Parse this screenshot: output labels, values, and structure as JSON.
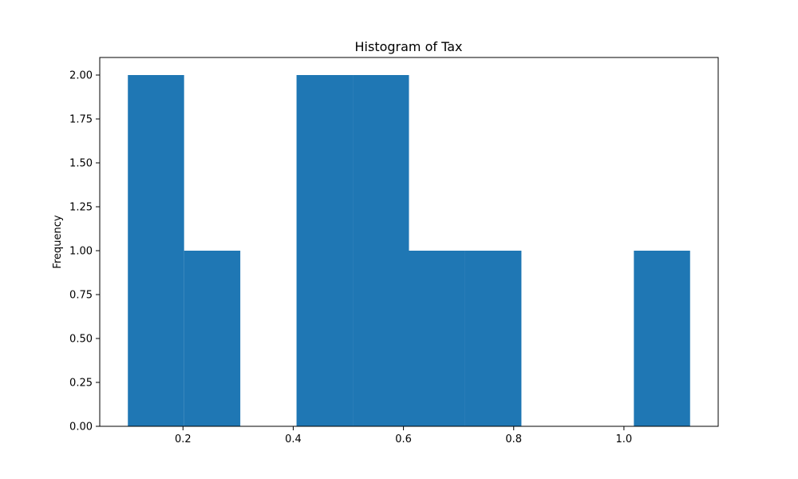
{
  "chart_data": {
    "type": "bar",
    "title": "Histogram of Tax",
    "xlabel": "",
    "ylabel": "Frequency",
    "bins": [
      {
        "x0": 0.1,
        "x1": 0.202,
        "value": 2
      },
      {
        "x0": 0.202,
        "x1": 0.304,
        "value": 1
      },
      {
        "x0": 0.304,
        "x1": 0.406,
        "value": 0
      },
      {
        "x0": 0.406,
        "x1": 0.508,
        "value": 2
      },
      {
        "x0": 0.508,
        "x1": 0.61,
        "value": 2
      },
      {
        "x0": 0.61,
        "x1": 0.712,
        "value": 1
      },
      {
        "x0": 0.712,
        "x1": 0.814,
        "value": 1
      },
      {
        "x0": 0.814,
        "x1": 0.916,
        "value": 0
      },
      {
        "x0": 0.916,
        "x1": 1.018,
        "value": 0
      },
      {
        "x0": 1.018,
        "x1": 1.12,
        "value": 1
      }
    ],
    "xlim": [
      0.049,
      1.171
    ],
    "ylim": [
      0,
      2.1
    ],
    "xticks": [
      0.2,
      0.4,
      0.6,
      0.8,
      1.0
    ],
    "xtick_labels": [
      "0.2",
      "0.4",
      "0.6",
      "0.8",
      "1.0"
    ],
    "yticks": [
      0,
      0.25,
      0.5,
      0.75,
      1.0,
      1.25,
      1.5,
      1.75,
      2.0
    ],
    "ytick_labels": [
      "0.00",
      "0.25",
      "0.50",
      "0.75",
      "1.00",
      "1.25",
      "1.50",
      "1.75",
      "2.00"
    ],
    "grid": false,
    "legend": "none",
    "colors": {
      "bar": "#1f77b4",
      "axes": "#000000",
      "background": "#ffffff"
    }
  }
}
